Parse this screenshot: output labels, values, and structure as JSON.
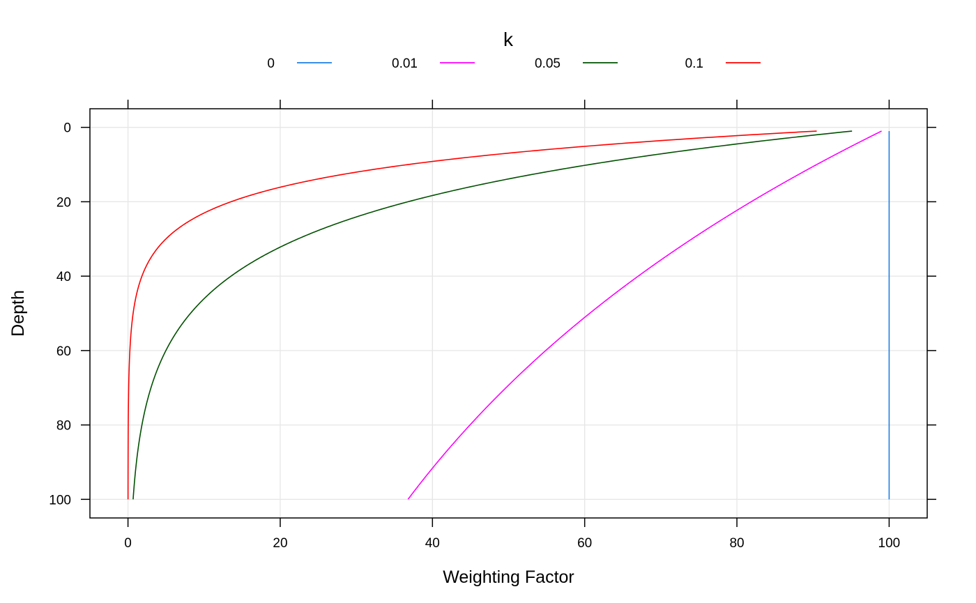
{
  "chart_data": {
    "type": "line",
    "xlabel": "Weighting Factor",
    "ylabel": "Depth",
    "xlim": [
      -5,
      105
    ],
    "ylim": [
      105,
      -5
    ],
    "y_reversed": true,
    "x_ticks": [
      0,
      20,
      40,
      60,
      80,
      100
    ],
    "y_ticks": [
      0,
      20,
      40,
      60,
      80,
      100
    ],
    "grid": true,
    "legend": {
      "title": "k",
      "placement": "top"
    },
    "series": [
      {
        "name": "0",
        "k": 0,
        "color": "#1e7fe6",
        "formula": "100*exp(-k*depth)",
        "depth_range": [
          1,
          100
        ]
      },
      {
        "name": "0.01",
        "k": 0.01,
        "color": "#ff00ff",
        "formula": "100*exp(-k*depth)",
        "depth_range": [
          1,
          100
        ]
      },
      {
        "name": "0.05",
        "k": 0.05,
        "color": "#005000",
        "formula": "100*exp(-k*depth)",
        "depth_range": [
          1,
          100
        ]
      },
      {
        "name": "0.1",
        "k": 0.1,
        "color": "#ff0000",
        "formula": "100*exp(-k*depth)",
        "depth_range": [
          1,
          100
        ]
      }
    ]
  }
}
